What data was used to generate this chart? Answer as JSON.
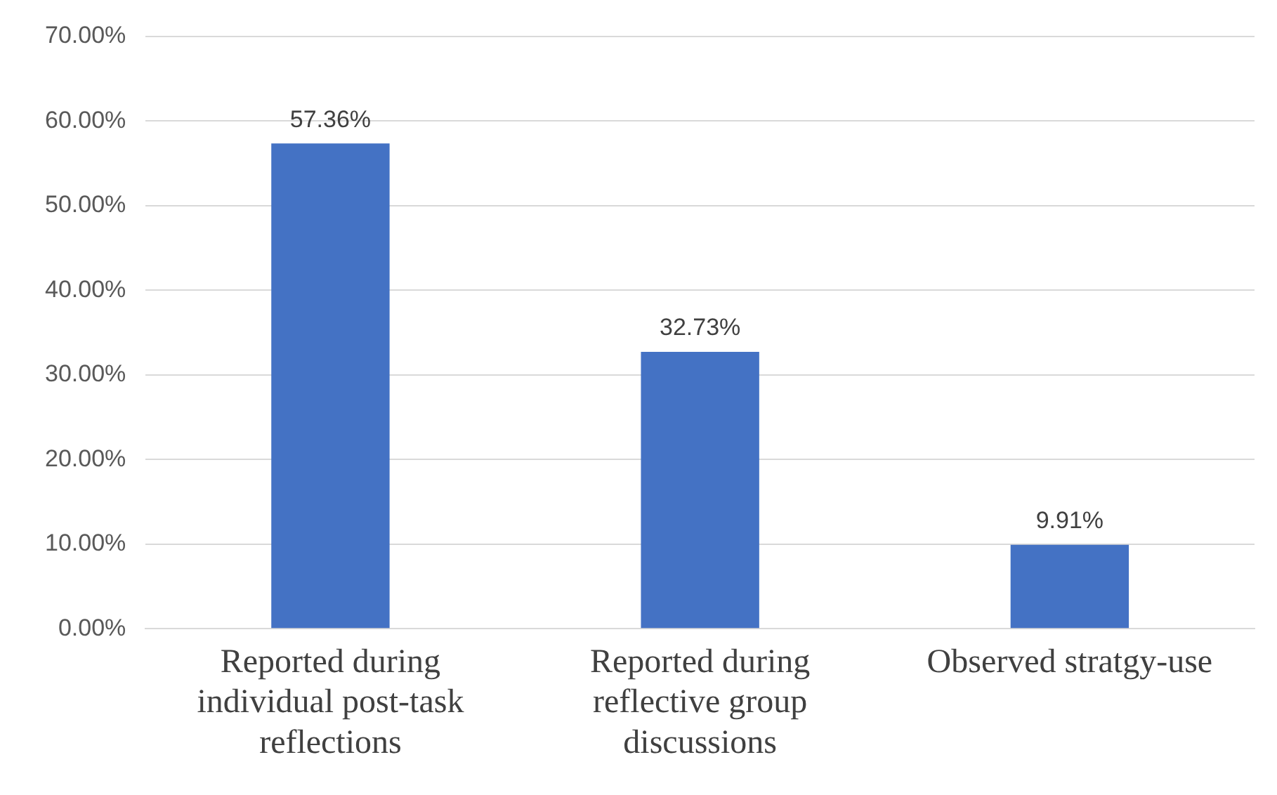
{
  "chart_data": {
    "type": "bar",
    "categories": [
      "Reported during individual post-task reflections",
      "Reported during reflective group discussions",
      "Observed stratgy-use"
    ],
    "values": [
      57.36,
      32.73,
      9.91
    ],
    "value_labels": [
      "57.36%",
      "32.73%",
      "9.91%"
    ],
    "color": "#4472c4",
    "ylim": [
      0,
      70
    ],
    "yticks": [
      {
        "value": 0,
        "label": "0.00%"
      },
      {
        "value": 10,
        "label": "10.00%"
      },
      {
        "value": 20,
        "label": "20.00%"
      },
      {
        "value": 30,
        "label": "30.00%"
      },
      {
        "value": 40,
        "label": "40.00%"
      },
      {
        "value": 50,
        "label": "50.00%"
      },
      {
        "value": 60,
        "label": "60.00%"
      },
      {
        "value": 70,
        "label": "70.00%"
      }
    ],
    "grid": "y"
  }
}
